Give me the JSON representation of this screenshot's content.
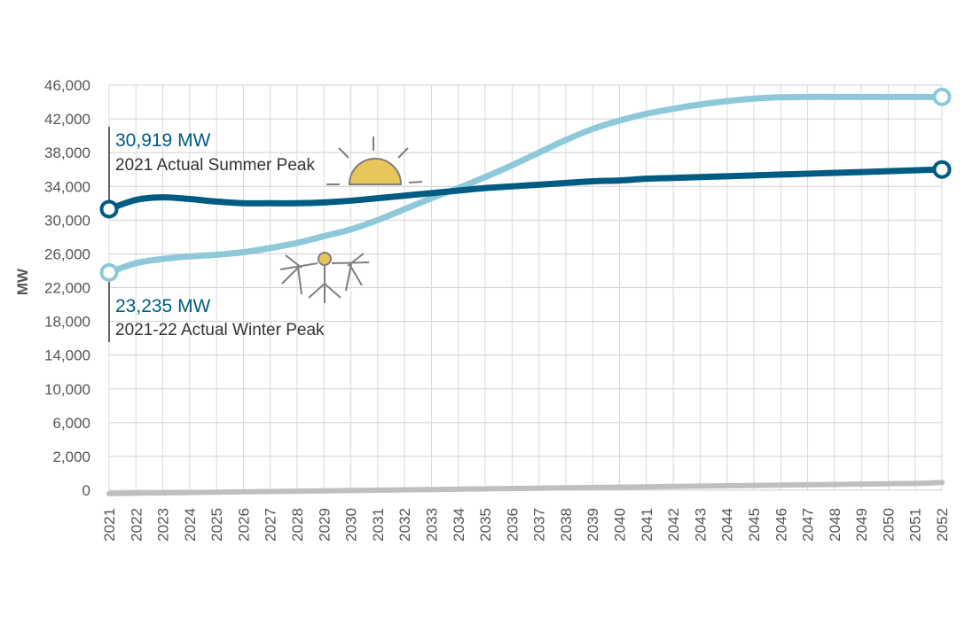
{
  "chart_data": {
    "type": "line",
    "ylabel": "MW",
    "xlabel": "",
    "title": "",
    "y_ticks": [
      0,
      2000,
      6000,
      10000,
      14000,
      18000,
      22000,
      26000,
      30000,
      34000,
      38000,
      42000,
      46000
    ],
    "y_tick_labels": [
      "0",
      "2,000",
      "6,000",
      "10,000",
      "14,000",
      "18,000",
      "22,000",
      "26,000",
      "30,000",
      "34,000",
      "38,000",
      "42,000",
      "46,000"
    ],
    "x": [
      "2021",
      "2022",
      "2023",
      "2024",
      "2025",
      "2026",
      "2027",
      "2028",
      "2029",
      "2030",
      "2031",
      "2032",
      "2033",
      "2034",
      "2035",
      "2036",
      "2037",
      "2038",
      "2039",
      "2040",
      "2041",
      "2042",
      "2043",
      "2044",
      "2045",
      "2046",
      "2047",
      "2048",
      "2049",
      "2050",
      "2051",
      "2052"
    ],
    "series": [
      {
        "key": "summer",
        "color": "#005b82",
        "values": [
          31300,
          32400,
          32700,
          32500,
          32200,
          32000,
          32000,
          32000,
          32100,
          32300,
          32600,
          32900,
          33200,
          33500,
          33800,
          34000,
          34200,
          34400,
          34600,
          34700,
          34900,
          35000,
          35100,
          35200,
          35300,
          35400,
          35500,
          35600,
          35700,
          35800,
          35900,
          36000
        ]
      },
      {
        "key": "winter",
        "color": "#8ec9d9",
        "values": [
          23800,
          24900,
          25400,
          25700,
          25900,
          26200,
          26700,
          27300,
          28100,
          28900,
          30000,
          31300,
          32600,
          33800,
          35100,
          36500,
          38000,
          39500,
          40800,
          41800,
          42600,
          43200,
          43700,
          44100,
          44400,
          44550,
          44600,
          44600,
          44600,
          44600,
          44600,
          44600
        ]
      },
      {
        "key": "baseline",
        "color": "#bfbfbf",
        "values": [
          -200,
          -180,
          -160,
          -140,
          -120,
          -100,
          -80,
          -60,
          -40,
          -20,
          0,
          20,
          40,
          60,
          80,
          100,
          120,
          140,
          160,
          180,
          200,
          220,
          240,
          260,
          280,
          300,
          320,
          340,
          360,
          380,
          400,
          450
        ]
      }
    ],
    "annotations": [
      {
        "key": "summer",
        "value": "30,919 MW",
        "label": "2021 Actual Summer Peak"
      },
      {
        "key": "winter",
        "value": "23,235 MW",
        "label": "2021-22 Actual Winter Peak"
      }
    ],
    "icons": [
      "sun-icon",
      "snowflake-icon"
    ],
    "grid": "on",
    "legend": "none"
  }
}
